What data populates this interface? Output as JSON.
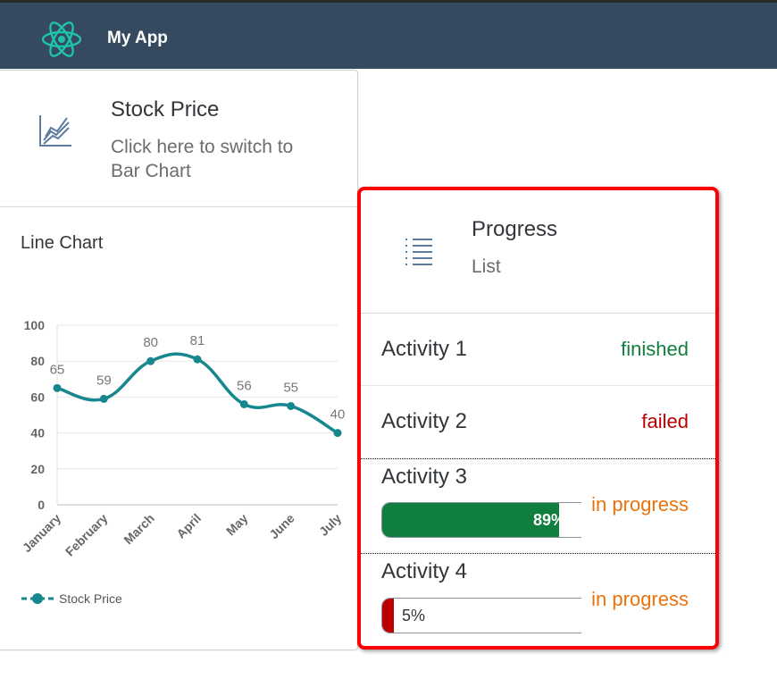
{
  "app": {
    "title": "My App",
    "logo": "react-atom-logo"
  },
  "stock_card": {
    "title": "Stock Price",
    "subtitle": "Click here to switch to Bar Chart",
    "icon": "line-chart-icon",
    "chart_title": "Line Chart"
  },
  "chart_data": {
    "type": "line",
    "categories": [
      "January",
      "February",
      "March",
      "April",
      "May",
      "June",
      "July"
    ],
    "series": [
      {
        "name": "Stock Price",
        "values": [
          65,
          59,
          80,
          81,
          56,
          55,
          40
        ],
        "color": "#16878e"
      }
    ],
    "ylim": [
      0,
      100
    ],
    "yticks": [
      0,
      20,
      40,
      60,
      80,
      100
    ],
    "grid": true,
    "legend": "bottom-left",
    "smooth": true,
    "data_labels": true
  },
  "progress_card": {
    "title": "Progress",
    "subtitle": "List",
    "icon": "list-icon",
    "items": [
      {
        "name": "Activity 1",
        "status": "finished",
        "status_color": "#107e3e"
      },
      {
        "name": "Activity 2",
        "status": "failed",
        "status_color": "#bb0000"
      },
      {
        "name": "Activity 3",
        "status": "in progress",
        "status_color": "#e9730c",
        "percent": 89,
        "percent_label": "89%",
        "bar_color": "#107e3e"
      },
      {
        "name": "Activity 4",
        "status": "in progress",
        "status_color": "#e9730c",
        "percent": 5,
        "percent_label": "5%",
        "bar_color": "#bb0000"
      }
    ]
  }
}
